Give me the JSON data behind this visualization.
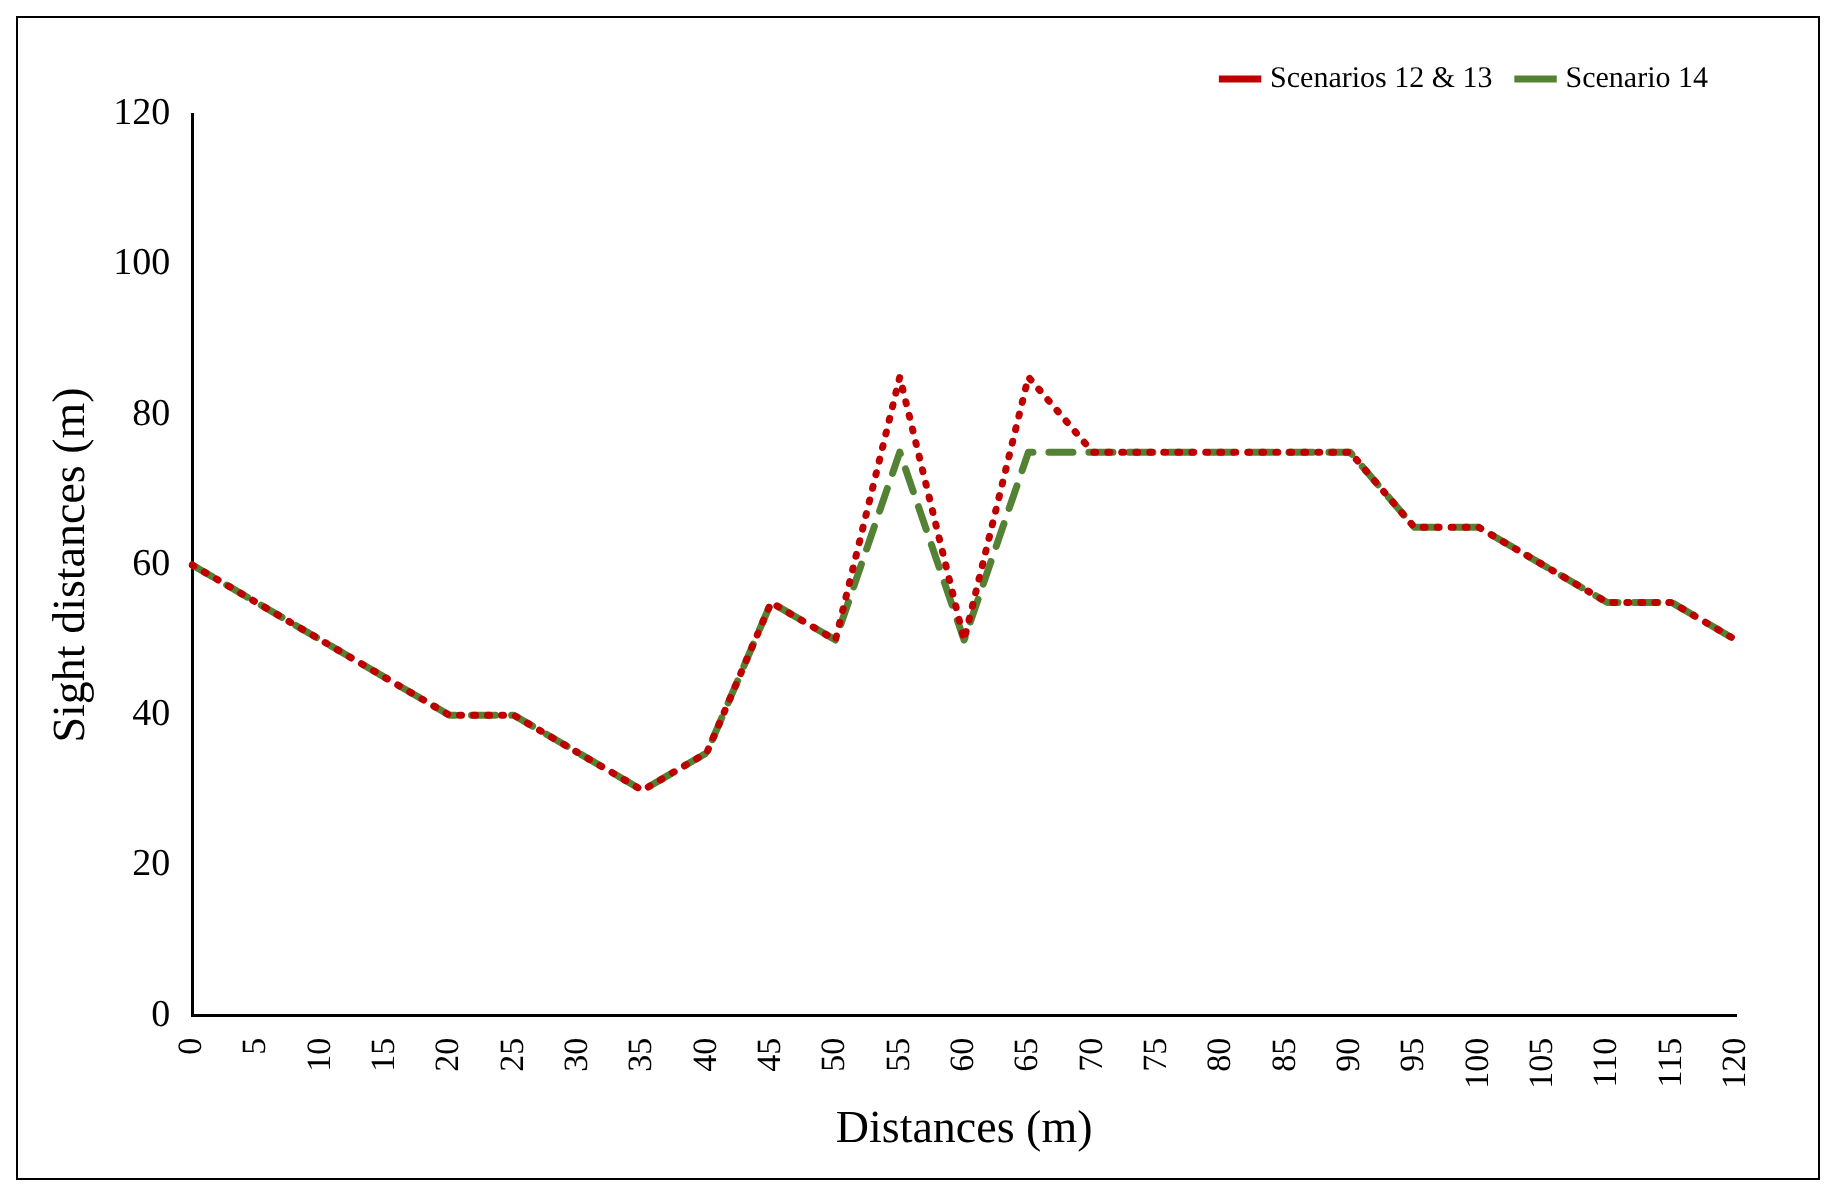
{
  "chart_data": {
    "type": "line",
    "xlabel": "Distances (m)",
    "ylabel": "Sight distances (m)",
    "categories": [
      "0",
      "5",
      "10",
      "15",
      "20",
      "25",
      "30",
      "35",
      "40",
      "45",
      "50",
      "55",
      "60",
      "65",
      "70",
      "75",
      "80",
      "85",
      "90",
      "95",
      "100",
      "105",
      "110",
      "115",
      "120"
    ],
    "series": [
      {
        "name": "Scenarios 12 & 13",
        "color": "#c00000",
        "line_style": "dotted",
        "values": [
          60,
          55,
          50,
          45,
          40,
          40,
          35,
          30,
          35,
          55,
          50,
          85,
          50,
          85,
          75,
          75,
          75,
          75,
          75,
          65,
          65,
          60,
          55,
          55,
          50
        ]
      },
      {
        "name": "Scenario 14",
        "color": "#548235",
        "line_style": "dashed",
        "values": [
          60,
          55,
          50,
          45,
          40,
          40,
          35,
          30,
          35,
          55,
          50,
          75,
          50,
          75,
          75,
          75,
          75,
          75,
          75,
          65,
          65,
          60,
          55,
          55,
          50
        ]
      }
    ],
    "ylim": [
      0,
      120
    ],
    "yticks": [
      0,
      20,
      40,
      60,
      80,
      100,
      120
    ],
    "grid": false,
    "legend": "top right",
    "marker": "none"
  }
}
